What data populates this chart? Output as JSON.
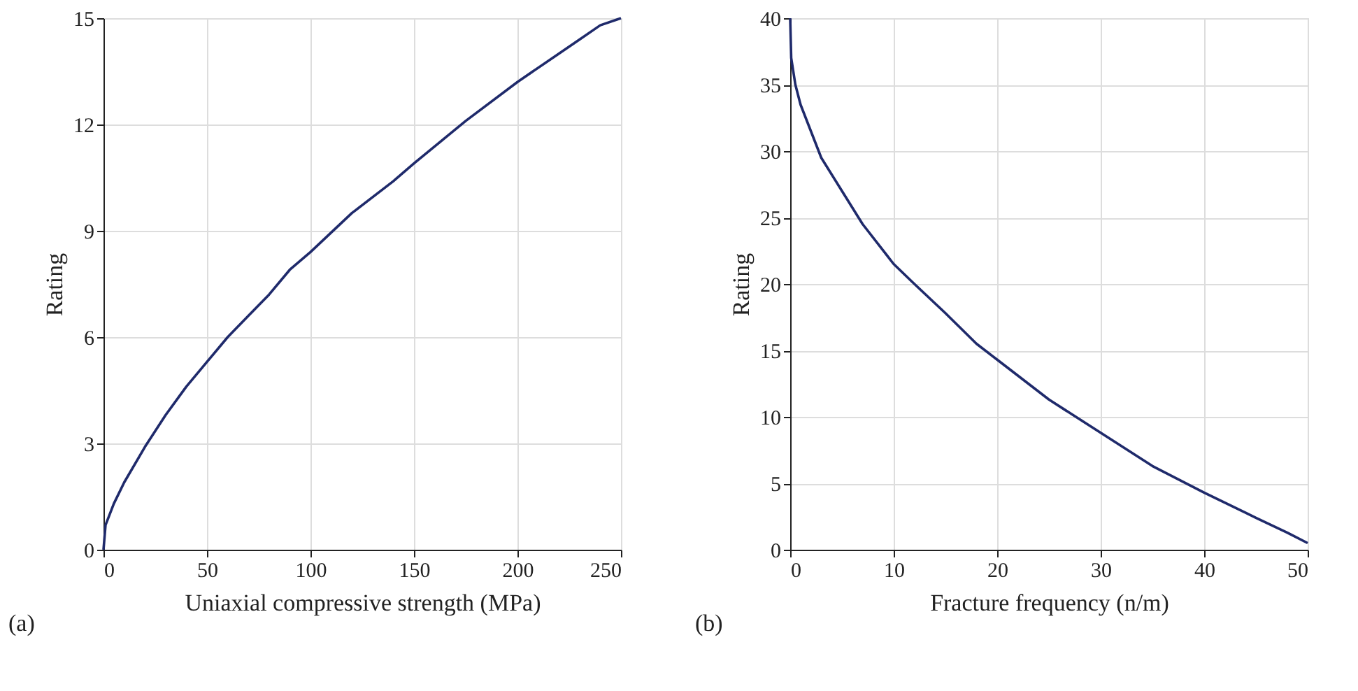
{
  "chart_data": [
    {
      "type": "line",
      "xlabel": "Uniaxial compressive strength (MPa)",
      "ylabel": "Rating",
      "annotations": [
        "(a)"
      ],
      "x": [
        0,
        1,
        5,
        10,
        20,
        30,
        40,
        50,
        60,
        70,
        80,
        90,
        100,
        120,
        140,
        150,
        175,
        200,
        220,
        230,
        240,
        250
      ],
      "series": [
        {
          "color": "#1f2a6b",
          "values": [
            0,
            0.7,
            1.3,
            1.9,
            2.9,
            3.8,
            4.6,
            5.3,
            6.0,
            6.6,
            7.2,
            7.9,
            8.4,
            9.5,
            10.4,
            10.9,
            12.1,
            13.2,
            14.0,
            14.4,
            14.8,
            15
          ]
        }
      ],
      "xlim": [
        0,
        250
      ],
      "xticks": [
        0,
        50,
        100,
        150,
        200,
        250
      ],
      "ylim": [
        0,
        15
      ],
      "yticks": [
        0,
        3,
        6,
        9,
        12,
        15
      ],
      "grid": true,
      "marker": "none",
      "line_style": "solid"
    },
    {
      "type": "line",
      "xlabel": "Fracture frequency (n/m)",
      "ylabel": "Rating",
      "annotations": [
        "(b)"
      ],
      "x": [
        0,
        0.1,
        0.5,
        1,
        2,
        3,
        5,
        7,
        10,
        12,
        15,
        18,
        20,
        25,
        28,
        30,
        35,
        40,
        45,
        48,
        50
      ],
      "series": [
        {
          "color": "#1f2a6b",
          "values": [
            40,
            37,
            35,
            33.5,
            31.5,
            29.5,
            27,
            24.5,
            21.5,
            20,
            17.8,
            15.5,
            14.3,
            11.3,
            9.8,
            8.8,
            6.3,
            4.3,
            2.4,
            1.3,
            0.5
          ]
        }
      ],
      "xlim": [
        0,
        50
      ],
      "xticks": [
        0,
        10,
        20,
        30,
        40,
        50
      ],
      "ylim": [
        0,
        40
      ],
      "yticks": [
        0,
        5,
        10,
        15,
        20,
        25,
        30,
        35,
        40
      ],
      "grid": true,
      "marker": "none",
      "line_style": "solid"
    }
  ]
}
